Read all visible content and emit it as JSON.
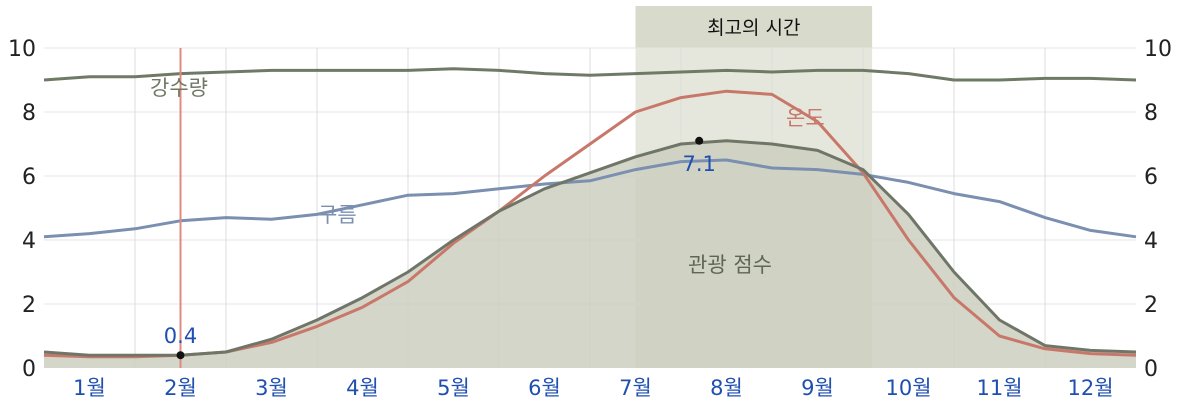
{
  "chart_data": {
    "type": "area",
    "xlabel": "",
    "ylabel": "",
    "ylim": [
      0,
      10
    ],
    "yticks": [
      "0",
      "2",
      "4",
      "6",
      "8",
      "10"
    ],
    "categories": [
      "1월",
      "2월",
      "3월",
      "4월",
      "5월",
      "6월",
      "7월",
      "8월",
      "9월",
      "10월",
      "11월",
      "12월"
    ],
    "grid": true,
    "best_time": {
      "label": "최고의 시간",
      "start": 6.5,
      "end": 9.1
    },
    "highlight_marker": {
      "month": 1.5,
      "date_label": ""
    },
    "series": [
      {
        "name": "강수량",
        "color": "#6e7a66",
        "x": [
          0.0,
          0.5,
          1.0,
          1.5,
          2.0,
          2.5,
          3.0,
          3.5,
          4.0,
          4.5,
          5.0,
          5.5,
          6.0,
          6.5,
          7.0,
          7.5,
          8.0,
          8.5,
          9.0,
          9.5,
          10.0,
          10.5,
          11.0,
          11.5,
          12.0
        ],
        "values": [
          9.0,
          9.1,
          9.1,
          9.2,
          9.25,
          9.3,
          9.3,
          9.3,
          9.3,
          9.35,
          9.3,
          9.2,
          9.15,
          9.2,
          9.25,
          9.3,
          9.25,
          9.3,
          9.3,
          9.2,
          9.0,
          9.0,
          9.05,
          9.05,
          9.0
        ]
      },
      {
        "name": "구름",
        "color": "#7b8fb0",
        "x": [
          0.0,
          0.5,
          1.0,
          1.5,
          2.0,
          2.5,
          3.0,
          3.5,
          4.0,
          4.5,
          5.0,
          5.5,
          6.0,
          6.5,
          7.0,
          7.5,
          8.0,
          8.5,
          9.0,
          9.5,
          10.0,
          10.5,
          11.0,
          11.5,
          12.0
        ],
        "values": [
          4.1,
          4.2,
          4.35,
          4.6,
          4.7,
          4.65,
          4.8,
          5.1,
          5.4,
          5.45,
          5.6,
          5.75,
          5.85,
          6.2,
          6.45,
          6.5,
          6.25,
          6.2,
          6.05,
          5.8,
          5.45,
          5.2,
          4.7,
          4.3,
          4.1
        ]
      },
      {
        "name": "온도",
        "color": "#c8786a",
        "x": [
          0.0,
          0.5,
          1.0,
          1.5,
          2.0,
          2.5,
          3.0,
          3.5,
          4.0,
          4.5,
          5.0,
          5.5,
          6.0,
          6.5,
          7.0,
          7.5,
          8.0,
          8.5,
          9.0,
          9.5,
          10.0,
          10.5,
          11.0,
          11.5,
          12.0
        ],
        "values": [
          0.4,
          0.35,
          0.35,
          0.4,
          0.5,
          0.8,
          1.3,
          1.9,
          2.7,
          3.9,
          4.9,
          6.0,
          7.0,
          8.0,
          8.45,
          8.65,
          8.55,
          7.7,
          6.1,
          4.0,
          2.2,
          1.0,
          0.6,
          0.45,
          0.4
        ]
      },
      {
        "name": "관광 점수",
        "color": "#6f7668",
        "fill": "#cdcfbf",
        "x": [
          0.0,
          0.5,
          1.0,
          1.5,
          2.0,
          2.5,
          3.0,
          3.5,
          4.0,
          4.5,
          5.0,
          5.5,
          6.0,
          6.5,
          7.0,
          7.5,
          8.0,
          8.5,
          9.0,
          9.5,
          10.0,
          10.5,
          11.0,
          11.5,
          12.0
        ],
        "values": [
          0.5,
          0.4,
          0.4,
          0.4,
          0.5,
          0.9,
          1.5,
          2.2,
          3.0,
          4.0,
          4.9,
          5.6,
          6.1,
          6.6,
          7.0,
          7.1,
          7.0,
          6.8,
          6.2,
          4.8,
          3.0,
          1.5,
          0.7,
          0.55,
          0.5
        ]
      }
    ],
    "series_labels": {
      "precip": "강수량",
      "cloud": "구름",
      "temp": "온도",
      "score": "관광 점수"
    },
    "annotations": [
      {
        "label": "0.4",
        "month": 1.5,
        "value": 0.4
      },
      {
        "label": "7.1",
        "month": 7.2,
        "value": 7.1
      }
    ]
  }
}
